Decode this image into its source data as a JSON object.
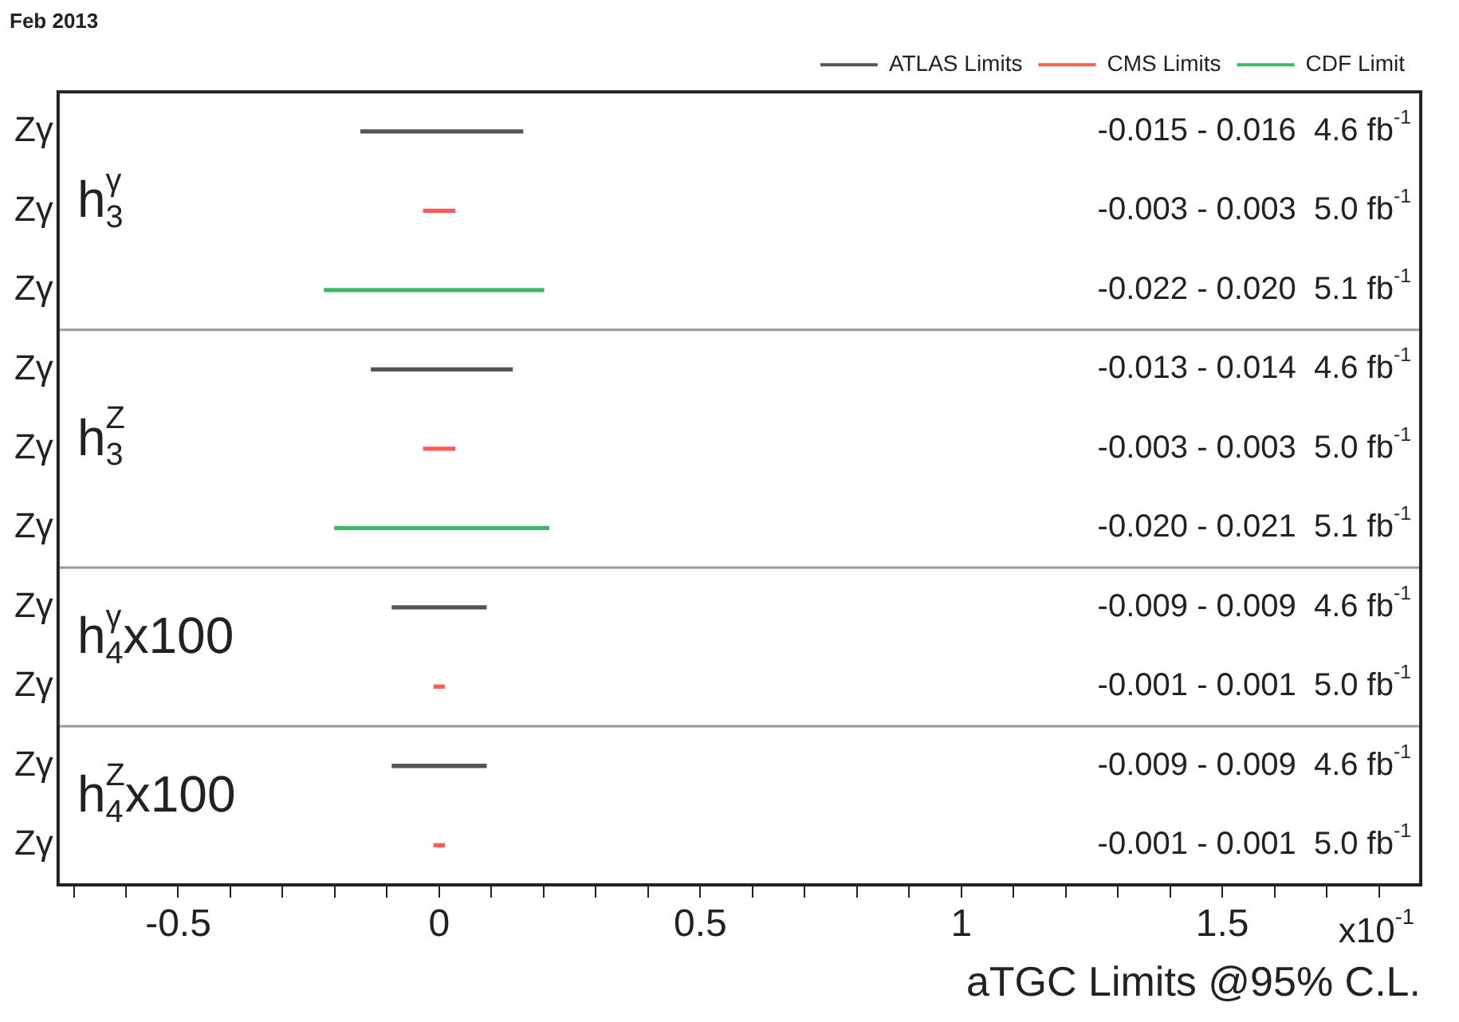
{
  "chart_data": {
    "type": "bar",
    "orientation": "horizontal",
    "title": "Feb 2013",
    "xlabel": "aTGC Limits @95% C.L.",
    "categories": [
      "Zγ",
      "Zγ",
      "Zγ",
      "Zγ",
      "Zγ",
      "Zγ",
      "Zγ",
      "Zγ",
      "Zγ",
      "Zγ"
    ],
    "series": [
      {
        "name": "ATLAS Limits",
        "color": "#555555",
        "base": [
          -0.15,
          null,
          null,
          -0.13,
          null,
          null,
          -0.09,
          null,
          -0.09,
          null
        ],
        "values": [
          0.31,
          null,
          null,
          0.27,
          null,
          null,
          0.18,
          null,
          0.18,
          null
        ]
      },
      {
        "name": "CMS Limits",
        "color": "#ff5a5a",
        "base": [
          null,
          -0.03,
          null,
          null,
          -0.03,
          null,
          null,
          -0.01,
          null,
          -0.01
        ],
        "values": [
          null,
          0.06,
          null,
          null,
          0.06,
          null,
          null,
          0.02,
          null,
          0.02
        ]
      },
      {
        "name": "CDF Limit",
        "color": "#3cb868",
        "base": [
          null,
          null,
          -0.22,
          null,
          null,
          -0.2,
          null,
          null,
          null,
          null
        ],
        "values": [
          null,
          null,
          0.42,
          null,
          null,
          0.41,
          null,
          null,
          null,
          null
        ]
      }
    ],
    "xlim": [
      -0.73,
      1.88
    ],
    "xticks": [
      {
        "value": -0.7,
        "label": null
      },
      {
        "value": -0.6,
        "label": null
      },
      -0.5,
      {
        "value": -0.4,
        "label": null
      },
      {
        "value": -0.3,
        "label": null
      },
      {
        "value": -0.2,
        "label": null
      },
      {
        "value": -0.1,
        "label": null
      },
      0,
      {
        "value": 0.1,
        "label": null
      },
      {
        "value": 0.2,
        "label": null
      },
      {
        "value": 0.3,
        "label": null
      },
      {
        "value": 0.4,
        "label": null
      },
      0.5,
      {
        "value": 0.6,
        "label": null
      },
      {
        "value": 0.7,
        "label": null
      },
      {
        "value": 0.8,
        "label": null
      },
      {
        "value": 0.9,
        "label": null
      },
      1,
      {
        "value": 1.1,
        "label": null
      },
      {
        "value": 1.2,
        "label": null
      },
      {
        "value": 1.3,
        "label": null
      },
      {
        "value": 1.4,
        "label": null
      },
      1.5,
      {
        "value": 1.6,
        "label": null
      },
      {
        "value": 1.7,
        "label": null
      },
      {
        "value": 1.8,
        "label": null
      }
    ],
    "grid": false,
    "legend": "top right",
    "annotations": [
      "h$^{γ}$$_{3}$",
      "h$^{Z}$$_{3}$",
      "h$^{γ}$$_{4}$x100",
      "h$^{Z}$$_{4}$x100",
      "-0.015 - 0.016  4.6 fb$^{-1}$",
      "-0.003 - 0.003  5.0 fb$^{-1}$",
      "-0.022 - 0.020  5.1 fb$^{-1}$",
      "-0.013 - 0.014  4.6 fb$^{-1}$",
      "-0.003 - 0.003  5.0 fb$^{-1}$",
      "-0.020 - 0.021  5.1 fb$^{-1}$",
      "-0.009 - 0.009  4.6 fb$^{-1}$",
      "-0.001 - 0.001  5.0 fb$^{-1}$",
      "-0.009 - 0.009  4.6 fb$^{-1}$",
      "-0.001 - 0.001  5.0 fb$^{-1}$",
      "x10$^{-1}$"
    ]
  }
}
